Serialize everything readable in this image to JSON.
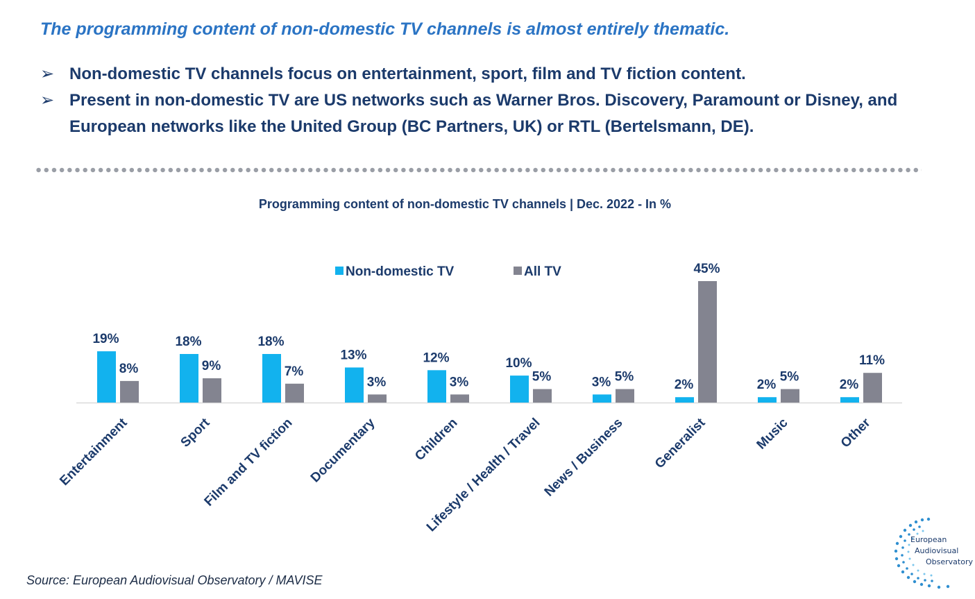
{
  "headline": "The programming content of non-domestic TV channels is almost entirely thematic.",
  "bullets": [
    "Non-domestic TV channels focus on entertainment, sport, film and TV fiction content.",
    "Present in non-domestic TV are US networks such as Warner Bros. Discovery, Paramount or Disney, and European networks like the United Group (BC Partners, UK) or RTL (Bertelsmann, DE)."
  ],
  "bullet_marker": "➢",
  "colors": {
    "headline": "#2b74c4",
    "text": "#1b3a6b",
    "series_non_domestic": "#12b2ee",
    "series_all_tv": "#838490"
  },
  "chart_data": {
    "type": "bar",
    "title": "Programming content of non-domestic TV channels | Dec. 2022 - In %",
    "categories": [
      "Entertainment",
      "Sport",
      "Film and TV fiction",
      "Documentary",
      "Children",
      "Lifestyle / Health / Travel",
      "News / Business",
      "Generalist",
      "Music",
      "Other"
    ],
    "series": [
      {
        "name": "Non-domestic TV",
        "values": [
          19,
          18,
          18,
          13,
          12,
          10,
          3,
          2,
          2,
          2
        ],
        "labels": [
          "19%",
          "18%",
          "18%",
          "13%",
          "12%",
          "10%",
          "3%",
          "2%",
          "2%",
          "2%"
        ]
      },
      {
        "name": "All TV",
        "values": [
          8,
          9,
          7,
          3,
          3,
          5,
          5,
          45,
          5,
          11
        ],
        "labels": [
          "8%",
          "9%",
          "7%",
          "3%",
          "3%",
          "5%",
          "5%",
          "45%",
          "5%",
          "11%"
        ]
      }
    ],
    "xlabel": "",
    "ylabel": "",
    "ylim": [
      0,
      45
    ],
    "legend": "top-center",
    "grid": false
  },
  "source": "Source: European Audiovisual Observatory / MAVISE",
  "logo": {
    "lines": [
      "European",
      "Audiovisual",
      "Observatory"
    ]
  }
}
